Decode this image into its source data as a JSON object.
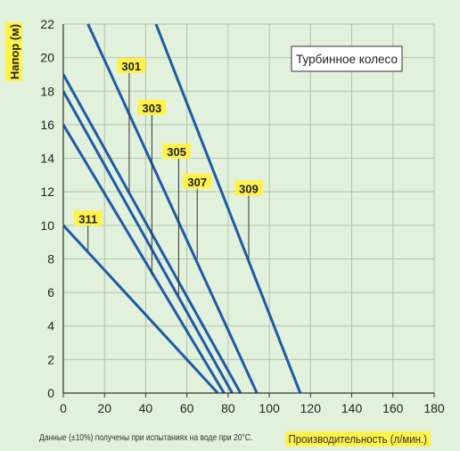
{
  "chart_data": {
    "type": "line",
    "ylabel": "Напор (м)",
    "xlabel": "Производительность (л/мин.)",
    "note": "Данные (±10%) получены при испытаниях на воде при 20°C.",
    "legend_box": "Турбинное колесо",
    "xlim": [
      0,
      180
    ],
    "ylim": [
      0,
      22
    ],
    "xticks": [
      0,
      20,
      40,
      60,
      80,
      100,
      120,
      140,
      160,
      180
    ],
    "yticks": [
      0,
      2,
      4,
      6,
      8,
      10,
      12,
      14,
      16,
      18,
      20,
      22
    ],
    "grid": true,
    "line_color": "#1f5aa6",
    "label_color": "#fff24a",
    "series": [
      {
        "name": "301",
        "points": [
          [
            12,
            22
          ],
          [
            94,
            0
          ]
        ]
      },
      {
        "name": "303",
        "points": [
          [
            0,
            19
          ],
          [
            86,
            0
          ]
        ]
      },
      {
        "name": "305",
        "points": [
          [
            0,
            18
          ],
          [
            82,
            0
          ]
        ]
      },
      {
        "name": "307",
        "points": [
          [
            0,
            16
          ],
          [
            78,
            0
          ]
        ]
      },
      {
        "name": "309",
        "points": [
          [
            45,
            22
          ],
          [
            115,
            0
          ]
        ]
      },
      {
        "name": "311",
        "points": [
          [
            0,
            10
          ],
          [
            75,
            0
          ]
        ]
      }
    ],
    "labels": [
      {
        "name": "301",
        "x": 33,
        "y": 19.5,
        "anchor": [
          32,
          12
        ]
      },
      {
        "name": "303",
        "x": 43,
        "y": 17,
        "anchor": [
          43,
          7
        ]
      },
      {
        "name": "305",
        "x": 55,
        "y": 14.4,
        "anchor": [
          56,
          5.8
        ]
      },
      {
        "name": "307",
        "x": 65,
        "y": 12.6,
        "anchor": [
          65,
          8
        ]
      },
      {
        "name": "309",
        "x": 90,
        "y": 12.2,
        "anchor": [
          90,
          8
        ]
      },
      {
        "name": "311",
        "x": 12,
        "y": 10.4,
        "anchor": [
          12,
          8.5
        ]
      }
    ]
  }
}
